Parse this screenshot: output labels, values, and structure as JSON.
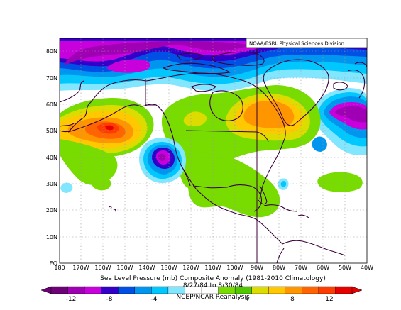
{
  "credit": "NOAA/ESRL Physical Sciences Division",
  "title": "Sea Level Pressure (mb) Composite Anomaly (1981-2010 Climatology)",
  "date_range": "8/27/84 to 8/30/84",
  "source": "NCEP/NCAR Reanalysis",
  "colorbar": {
    "labels": [
      "-12",
      "-8",
      "-4",
      "4",
      "8",
      "12"
    ],
    "colors": [
      "#6e0078",
      "#a000b4",
      "#c800dc",
      "#3200c8",
      "#0050e6",
      "#0096f0",
      "#00c8ff",
      "#82e6ff",
      "#ffffff",
      "#ffffff",
      "#78dc00",
      "#50c800",
      "#dcdc00",
      "#ffc800",
      "#ff9600",
      "#ff6400",
      "#ff3c00",
      "#e60000"
    ]
  },
  "map": {
    "lat_labels": [
      "80N",
      "70N",
      "60N",
      "50N",
      "40N",
      "30N",
      "20N",
      "10N",
      "EQ"
    ],
    "lon_labels": [
      "180",
      "170W",
      "160W",
      "150W",
      "140W",
      "130W",
      "120W",
      "110W",
      "100W",
      "90W",
      "80W",
      "70W",
      "60W",
      "50W",
      "40W"
    ]
  }
}
